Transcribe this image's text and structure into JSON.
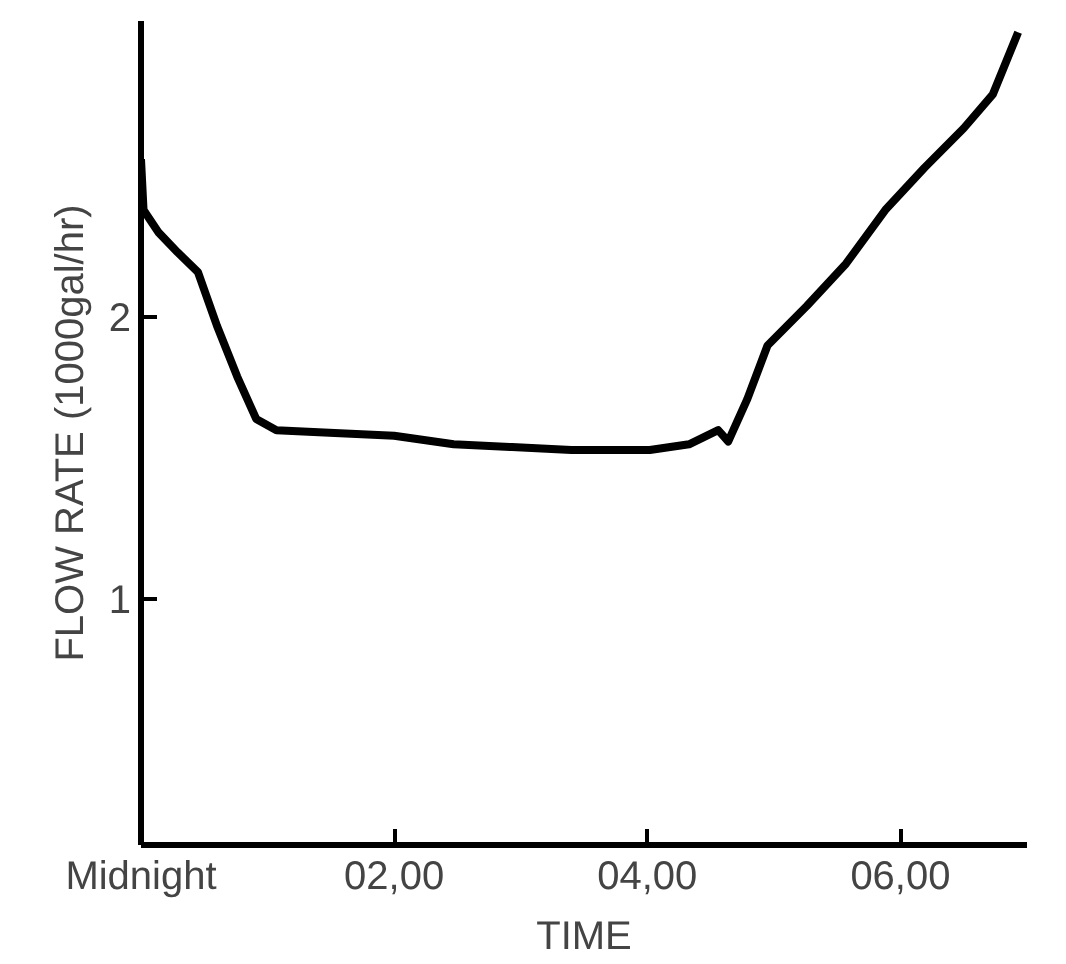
{
  "chart_data": {
    "type": "line",
    "xlabel": "TIME",
    "ylabel": "FLOW RATE (1000gal/hr)",
    "x": [
      0,
      0.02,
      0.14,
      0.29,
      0.45,
      0.6,
      0.76,
      0.91,
      1.07,
      1.53,
      2.0,
      2.47,
      2.93,
      3.4,
      4.02,
      4.33,
      4.56,
      4.64,
      4.79,
      4.95,
      5.26,
      5.57,
      5.88,
      6.19,
      6.5,
      6.73,
      6.93
    ],
    "series": [
      {
        "color": "#000000",
        "values": [
          2.56,
          2.38,
          2.3,
          2.23,
          2.16,
          1.97,
          1.79,
          1.64,
          1.6,
          1.59,
          1.58,
          1.55,
          1.54,
          1.53,
          1.53,
          1.55,
          1.6,
          1.56,
          1.71,
          1.9,
          2.04,
          2.19,
          2.38,
          2.53,
          2.67,
          2.79,
          3.01
        ]
      }
    ],
    "xlim": [
      0,
      7
    ],
    "ylim": [
      0.13,
      3.05
    ],
    "xticks": [
      {
        "value": 0,
        "label": "Midnight"
      },
      {
        "value": 2,
        "label": "02,00"
      },
      {
        "value": 4,
        "label": "04,00"
      },
      {
        "value": 6,
        "label": "06,00"
      }
    ],
    "yticks": [
      1,
      2
    ],
    "grid": false,
    "line_style": "solid"
  }
}
